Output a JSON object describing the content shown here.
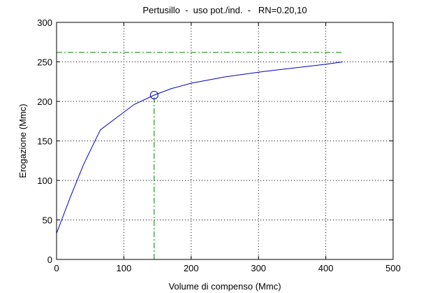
{
  "chart_data": {
    "type": "line",
    "title": "Pertusillo  -  uso pot./ind.  -   RN=0.20,10",
    "xlabel": "Volume di compenso (Mmc)",
    "ylabel": "Erogazione (Mmc)",
    "xlim": [
      0,
      500
    ],
    "ylim": [
      0,
      300
    ],
    "xticks": [
      0,
      100,
      200,
      300,
      400,
      500
    ],
    "yticks": [
      0,
      50,
      100,
      150,
      200,
      250,
      300
    ],
    "grid": true,
    "series": [
      {
        "color": "#0000c0",
        "x": [
          0,
          20,
          40,
          65,
          90,
          115,
          145,
          170,
          200,
          250,
          300,
          350,
          400,
          425
        ],
        "y": [
          33,
          78,
          120,
          164,
          180,
          196,
          208,
          216,
          223,
          231,
          237,
          242,
          247,
          250
        ]
      }
    ],
    "reference_lines": [
      {
        "orientation": "horizontal",
        "y": 262,
        "x_range": [
          0,
          425
        ],
        "color": "#007f00",
        "style": "dash-dot"
      },
      {
        "orientation": "vertical",
        "x": 145,
        "y_range": [
          0,
          208
        ],
        "color": "#007f00",
        "style": "dash-dot"
      }
    ],
    "marker": {
      "x": 145,
      "y": 208,
      "shape": "circle",
      "color": "#0000c0"
    }
  }
}
